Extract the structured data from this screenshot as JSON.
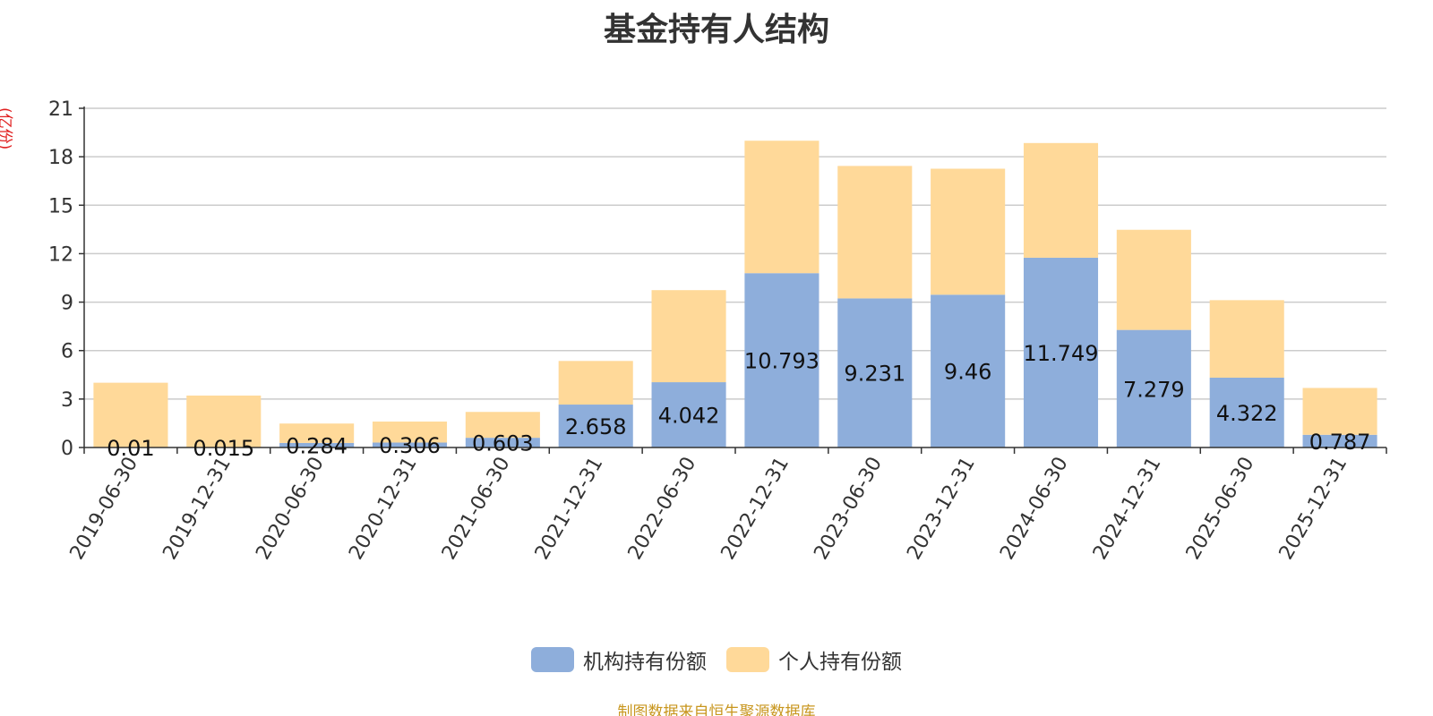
{
  "chart_data": {
    "type": "bar",
    "stacked": true,
    "title": "基金持有人结构",
    "ylabel": "(亿份)",
    "xlabel": "",
    "ylim": [
      0,
      21
    ],
    "yticks": [
      0,
      3,
      6,
      9,
      12,
      15,
      18,
      21
    ],
    "grid": true,
    "legend_position": "bottom",
    "categories": [
      "2019-06-30",
      "2019-12-31",
      "2020-06-30",
      "2020-12-31",
      "2021-06-30",
      "2021-12-31",
      "2022-06-30",
      "2022-12-31",
      "2023-06-30",
      "2023-12-31",
      "2024-06-30",
      "2024-12-31",
      "2025-06-30",
      "2025-12-31"
    ],
    "series": [
      {
        "name": "机构持有份额",
        "color": "#8eaedb",
        "values": [
          0.01,
          0.015,
          0.284,
          0.306,
          0.603,
          2.658,
          4.042,
          10.793,
          9.231,
          9.46,
          11.749,
          7.279,
          4.322,
          0.787
        ],
        "labels": [
          "0.01",
          "0.015",
          "0.284",
          "0.306",
          "0.603",
          "2.658",
          "4.042",
          "10.793",
          "9.231",
          "9.46",
          "11.749",
          "7.279",
          "4.322",
          "0.787"
        ]
      },
      {
        "name": "个人持有份额",
        "color": "#ffd999",
        "values": [
          4.0,
          3.2,
          1.2,
          1.3,
          1.6,
          2.7,
          5.7,
          8.2,
          8.2,
          7.8,
          7.1,
          6.2,
          4.8,
          2.9
        ]
      }
    ]
  },
  "footer": {
    "source": "制图数据来自恒生聚源数据库",
    "source_color": "#c8961e"
  }
}
